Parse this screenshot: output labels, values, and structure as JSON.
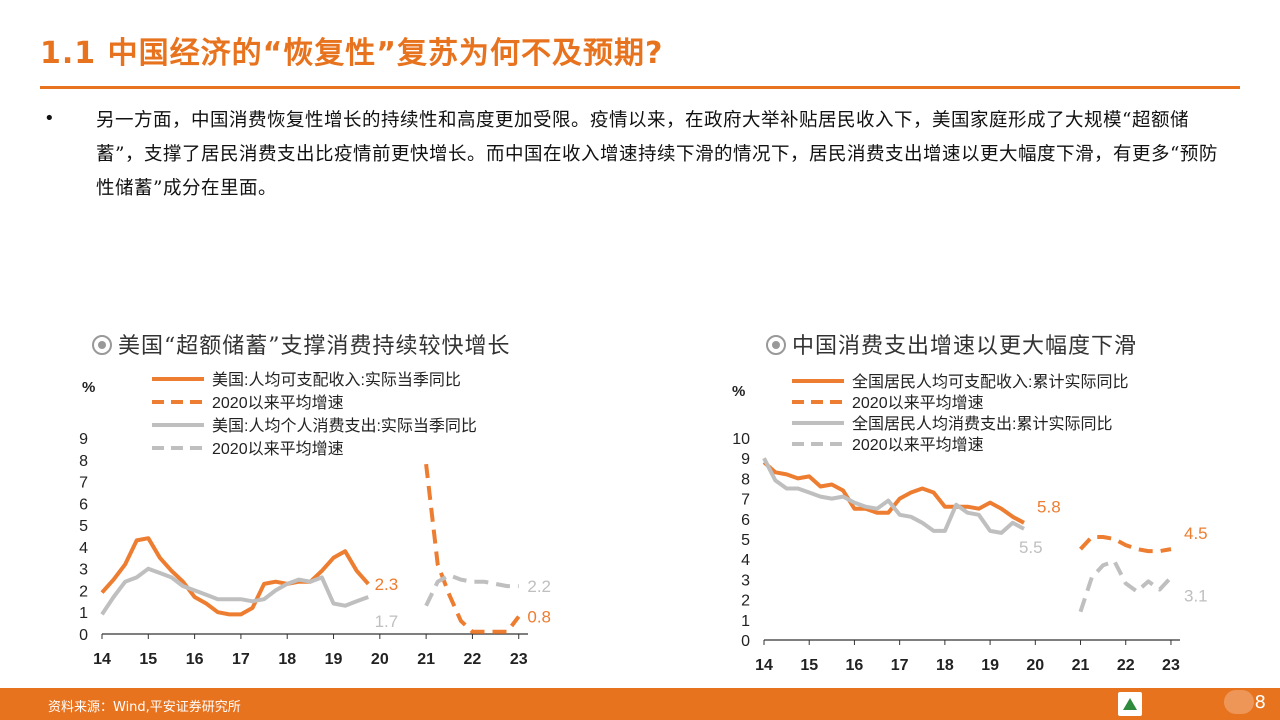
{
  "title": "1.1 中国经济的“恢复性”复苏为何不及预期?",
  "bullet": "•",
  "paragraph": "另一方面，中国消费恢复性增长的持续性和高度更加受限。疫情以来，在政府大举补贴居民收入下，美国家庭形成了大规模“超额储蓄”，支撑了居民消费支出比疫情前更快增长。而中国在收入增速持续下滑的情况下，居民消费支出增速以更大幅度下滑，有更多“预防性储蓄”成分在里面。",
  "footer": {
    "source": "资料来源：Wind,平安证券研究所",
    "page": "8"
  },
  "colors": {
    "accent": "#e8731f",
    "orange_series": "#ed7d31",
    "gray_series": "#bfbfbf"
  },
  "chart_data": [
    {
      "type": "line",
      "title": "美国“超额储蓄”支撑消费持续较快增长",
      "ylabel": "%",
      "ylim": [
        0,
        9
      ],
      "yticks": [
        "0",
        "1",
        "2",
        "3",
        "4",
        "5",
        "6",
        "7",
        "8",
        "9"
      ],
      "xlim": [
        14,
        23.2
      ],
      "xticks": [
        "14",
        "15",
        "16",
        "17",
        "18",
        "19",
        "20",
        "21",
        "22",
        "23"
      ],
      "legend": "top-left",
      "grid": false,
      "series": [
        {
          "name": "美国:人均可支配收入:实际当季同比",
          "color": "#ed7d31",
          "style": "solid",
          "x": [
            14.0,
            14.25,
            14.5,
            14.75,
            15.0,
            15.25,
            15.5,
            15.75,
            16.0,
            16.25,
            16.5,
            16.75,
            17.0,
            17.25,
            17.5,
            17.75,
            18.0,
            18.25,
            18.5,
            18.75,
            19.0,
            19.25,
            19.5,
            19.75
          ],
          "y": [
            1.9,
            2.5,
            3.2,
            4.3,
            4.4,
            3.5,
            2.9,
            2.4,
            1.7,
            1.4,
            1.0,
            0.9,
            0.9,
            1.2,
            2.3,
            2.4,
            2.3,
            2.4,
            2.4,
            2.9,
            3.5,
            3.8,
            2.9,
            2.3
          ]
        },
        {
          "name": "2020以来平均增速",
          "color": "#ed7d31",
          "style": "dashed",
          "x": [
            21.0,
            21.25,
            21.5,
            21.75,
            22.0,
            22.25,
            22.5,
            22.75,
            23.0
          ],
          "y": [
            7.8,
            3.2,
            1.8,
            0.6,
            0.1,
            0.1,
            0.1,
            0.1,
            0.8
          ]
        },
        {
          "name": "美国:人均个人消费支出:实际当季同比",
          "color": "#bfbfbf",
          "style": "solid",
          "x": [
            14.0,
            14.25,
            14.5,
            14.75,
            15.0,
            15.25,
            15.5,
            15.75,
            16.0,
            16.25,
            16.5,
            16.75,
            17.0,
            17.25,
            17.5,
            17.75,
            18.0,
            18.25,
            18.5,
            18.75,
            19.0,
            19.25,
            19.5,
            19.75
          ],
          "y": [
            0.9,
            1.7,
            2.4,
            2.6,
            3.0,
            2.8,
            2.6,
            2.2,
            2.0,
            1.8,
            1.6,
            1.6,
            1.6,
            1.5,
            1.6,
            2.0,
            2.3,
            2.5,
            2.4,
            2.6,
            1.4,
            1.3,
            1.5,
            1.7
          ]
        },
        {
          "name": "2020以来平均增速",
          "color": "#bfbfbf",
          "style": "dashed",
          "x": [
            21.0,
            21.25,
            21.5,
            21.75,
            22.0,
            22.25,
            22.5,
            22.75,
            23.0
          ],
          "y": [
            1.3,
            2.4,
            2.7,
            2.5,
            2.4,
            2.4,
            2.3,
            2.2,
            2.2
          ]
        }
      ],
      "annotations": [
        {
          "text": "2.3",
          "x": 19.8,
          "y": 2.3,
          "color": "#ed7d31"
        },
        {
          "text": "1.7",
          "x": 19.8,
          "y": 0.6,
          "color": "#bfbfbf"
        },
        {
          "text": "0.8",
          "x": 23.1,
          "y": 0.8,
          "color": "#ed7d31"
        },
        {
          "text": "2.2",
          "x": 23.1,
          "y": 2.2,
          "color": "#bfbfbf"
        }
      ]
    },
    {
      "type": "line",
      "title": "中国消费支出增速以更大幅度下滑",
      "ylabel": "%",
      "ylim": [
        0,
        10
      ],
      "yticks": [
        "0",
        "1",
        "2",
        "3",
        "4",
        "5",
        "6",
        "7",
        "8",
        "9",
        "10"
      ],
      "xlim": [
        14,
        23.2
      ],
      "xticks": [
        "14",
        "15",
        "16",
        "17",
        "18",
        "19",
        "20",
        "21",
        "22",
        "23"
      ],
      "legend": "top-left",
      "grid": false,
      "series": [
        {
          "name": "全国居民人均可支配收入:累计实际同比",
          "color": "#ed7d31",
          "style": "solid",
          "x": [
            14.0,
            14.25,
            14.5,
            14.75,
            15.0,
            15.25,
            15.5,
            15.75,
            16.0,
            16.25,
            16.5,
            16.75,
            17.0,
            17.25,
            17.5,
            17.75,
            18.0,
            18.25,
            18.5,
            18.75,
            19.0,
            19.25,
            19.5,
            19.75
          ],
          "y": [
            8.8,
            8.3,
            8.2,
            8.0,
            8.1,
            7.6,
            7.7,
            7.4,
            6.5,
            6.5,
            6.3,
            6.3,
            7.0,
            7.3,
            7.5,
            7.3,
            6.6,
            6.6,
            6.6,
            6.5,
            6.8,
            6.5,
            6.1,
            5.8
          ]
        },
        {
          "name": "2020以来平均增速",
          "color": "#ed7d31",
          "style": "dashed",
          "x": [
            21.0,
            21.25,
            21.5,
            21.75,
            22.0,
            22.25,
            22.5,
            22.75,
            23.0
          ],
          "y": [
            4.5,
            5.1,
            5.1,
            5.0,
            4.7,
            4.5,
            4.4,
            4.4,
            4.5
          ]
        },
        {
          "name": "全国居民人均消费支出:累计实际同比",
          "color": "#bfbfbf",
          "style": "solid",
          "x": [
            14.0,
            14.25,
            14.5,
            14.75,
            15.0,
            15.25,
            15.5,
            15.75,
            16.0,
            16.25,
            16.5,
            16.75,
            17.0,
            17.25,
            17.5,
            17.75,
            18.0,
            18.25,
            18.5,
            18.75,
            19.0,
            19.25,
            19.5,
            19.75
          ],
          "y": [
            9.0,
            7.9,
            7.5,
            7.5,
            7.3,
            7.1,
            7.0,
            7.1,
            6.8,
            6.6,
            6.5,
            6.9,
            6.2,
            6.1,
            5.8,
            5.4,
            5.4,
            6.7,
            6.3,
            6.2,
            5.4,
            5.3,
            5.8,
            5.5
          ]
        },
        {
          "name": "2020以来平均增速",
          "color": "#bfbfbf",
          "style": "dashed",
          "x": [
            21.0,
            21.25,
            21.5,
            21.75,
            22.0,
            22.25,
            22.5,
            22.75,
            23.0
          ],
          "y": [
            1.4,
            3.1,
            3.7,
            3.9,
            2.8,
            2.4,
            2.9,
            2.5,
            3.1
          ]
        }
      ],
      "annotations": [
        {
          "text": "5.8",
          "x": 19.95,
          "y": 6.6,
          "color": "#ed7d31"
        },
        {
          "text": "5.5",
          "x": 19.55,
          "y": 4.6,
          "color": "#bfbfbf"
        },
        {
          "text": "4.5",
          "x": 23.2,
          "y": 5.3,
          "color": "#ed7d31"
        },
        {
          "text": "3.1",
          "x": 23.2,
          "y": 2.2,
          "color": "#bfbfbf"
        }
      ]
    }
  ]
}
